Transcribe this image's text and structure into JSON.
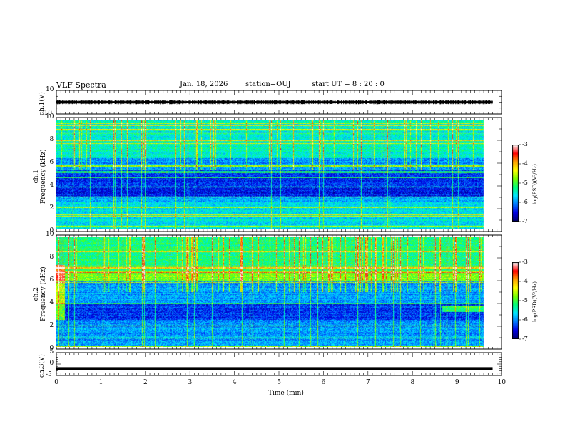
{
  "header": {
    "title": "VLF Spectra",
    "date": "Jan. 18, 2026",
    "station": "station=OUJ",
    "start": "start  UT =  8 : 20 : 0"
  },
  "chart_data": [
    {
      "type": "line",
      "name": "ch1-waveform",
      "ylabel": "ch.1(V)",
      "ylim": [
        -10,
        10
      ],
      "yticks": [
        "10",
        "-10"
      ],
      "xlim": [
        0,
        10
      ],
      "x": [
        0,
        9.8
      ],
      "mean_level_V": 0,
      "envelope_V": [
        -1.8,
        1.8
      ]
    },
    {
      "type": "heatmap",
      "name": "ch1-spectrogram",
      "ylabel": "ch.1\nFrequency (kHz)",
      "ylim": [
        0,
        10
      ],
      "yticks": [
        "0",
        "2",
        "4",
        "6",
        "8",
        "10"
      ],
      "xlim": [
        0,
        10
      ],
      "x_data_extent": [
        0,
        9.8
      ],
      "colorbar": {
        "label": "log(PSD)(V²/Hz)",
        "range": [
          -7,
          -3
        ],
        "ticks": [
          "-3",
          "-4",
          "-5",
          "-6",
          "-7"
        ]
      }
    },
    {
      "type": "heatmap",
      "name": "ch2-spectrogram",
      "ylabel": "ch.2\nFrequency (kHz)",
      "ylim": [
        0,
        10
      ],
      "yticks": [
        "0",
        "2",
        "4",
        "6",
        "8",
        "10"
      ],
      "xlim": [
        0,
        10
      ],
      "x_data_extent": [
        0,
        9.8
      ],
      "colorbar": {
        "label": "log(PSD)(V²/Hz)",
        "range": [
          -7,
          -3
        ],
        "ticks": [
          "-3",
          "-4",
          "-5",
          "-6",
          "-7"
        ]
      }
    },
    {
      "type": "line",
      "name": "ch3-waveform",
      "ylabel": "ch.3(V)",
      "ylim": [
        -5,
        5
      ],
      "yticks": [
        "5",
        "0",
        "-5"
      ],
      "xlim": [
        0,
        10
      ],
      "x": [
        0,
        9.8
      ],
      "y": [
        -2,
        -2
      ]
    }
  ],
  "xaxis": {
    "label": "Time (min)",
    "ticks": [
      "0",
      "1",
      "2",
      "3",
      "4",
      "5",
      "6",
      "7",
      "8",
      "9",
      "10"
    ]
  },
  "colors": {
    "cmap": [
      "#00006e",
      "#0000e6",
      "#0078ff",
      "#00e6ff",
      "#00ff78",
      "#78ff00",
      "#ffff00",
      "#ffa000",
      "#ff0000",
      "#ffffff"
    ]
  }
}
